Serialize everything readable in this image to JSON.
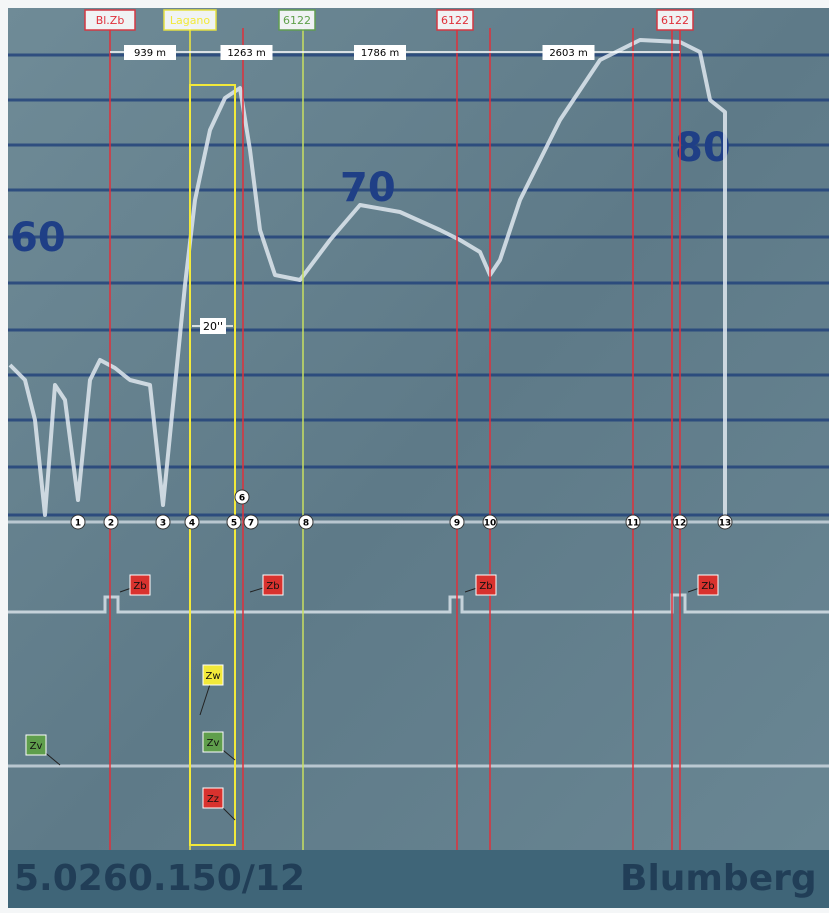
{
  "markers": [
    {
      "label": "Bl.Zb"
    },
    {
      "label": "Lagano"
    },
    {
      "label": "6122"
    },
    {
      "label": "6122"
    },
    {
      "label": "6122"
    }
  ],
  "distances": [
    "939 m",
    "1263 m",
    "1786 m",
    "2603 m"
  ],
  "duration": "20''",
  "speed_labels": [
    "60",
    "70",
    "80"
  ],
  "points": [
    "1",
    "2",
    "3",
    "4",
    "5",
    "6",
    "7",
    "8",
    "9",
    "10",
    "11",
    "12",
    "13"
  ],
  "callouts": [
    "Zb",
    "Zb",
    "Zb",
    "Zb",
    "Zw",
    "Zv",
    "Zv",
    "Zz"
  ],
  "footer": {
    "code": "5.0260.150/12",
    "place": "Blumberg"
  }
}
